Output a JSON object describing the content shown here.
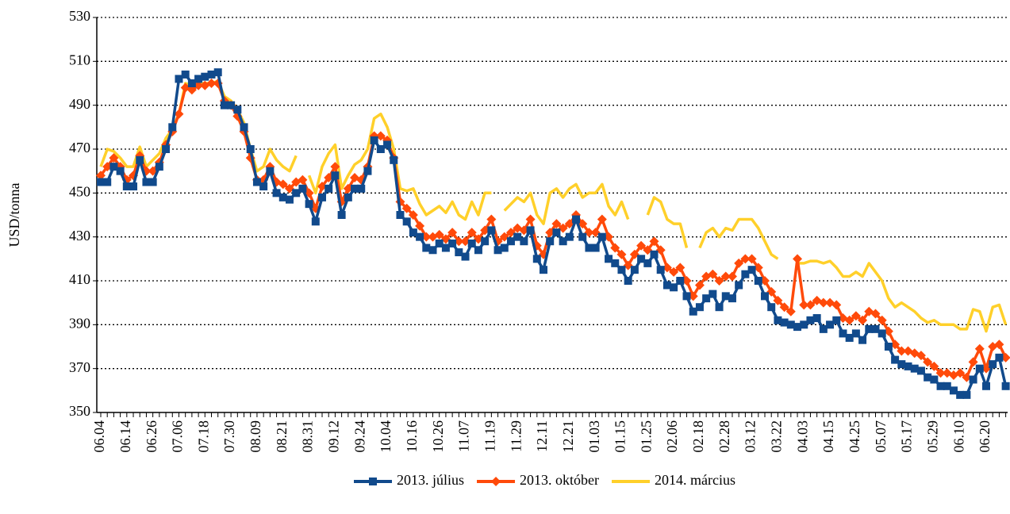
{
  "chart_data": {
    "type": "line",
    "y_label": "USD/tonna",
    "categories": [
      "06.04",
      null,
      null,
      null,
      "06.14",
      null,
      null,
      null,
      "06.26",
      null,
      null,
      null,
      "07.06",
      null,
      null,
      null,
      "07.18",
      null,
      null,
      null,
      "07.30",
      null,
      null,
      null,
      "08.09",
      null,
      null,
      null,
      "08.21",
      null,
      null,
      null,
      "08.31",
      null,
      null,
      null,
      "09.12",
      null,
      null,
      null,
      "09.24",
      null,
      null,
      null,
      "10.04",
      null,
      null,
      null,
      "10.16",
      null,
      null,
      null,
      "10.26",
      null,
      null,
      null,
      "11.07",
      null,
      null,
      null,
      "11.19",
      null,
      null,
      null,
      "11.29",
      null,
      null,
      null,
      "12.11",
      null,
      null,
      null,
      "12.21",
      null,
      null,
      null,
      "01.03",
      null,
      null,
      null,
      "01.15",
      null,
      null,
      null,
      "01.25",
      null,
      null,
      null,
      "02.06",
      null,
      null,
      null,
      "02.18",
      null,
      null,
      null,
      "02.28",
      null,
      null,
      null,
      "03.12",
      null,
      null,
      null,
      "03.22",
      null,
      null,
      null,
      "04.03",
      null,
      null,
      null,
      "04.15",
      null,
      null,
      null,
      "04.25",
      null,
      null,
      null,
      "05.07",
      null,
      null,
      null,
      "05.17",
      null,
      null,
      null,
      "05.29",
      null,
      null,
      null,
      "06.10",
      null,
      null,
      null,
      "06.20",
      null,
      null,
      null
    ],
    "series": [
      {
        "name": "2013. július",
        "color": "#114a8c",
        "marker": "square",
        "values": [
          455,
          455,
          462,
          460,
          453,
          453,
          465,
          455,
          455,
          462,
          470,
          480,
          502,
          504,
          500,
          502,
          503,
          504,
          505,
          490,
          490,
          488,
          480,
          470,
          455,
          453,
          460,
          450,
          448,
          447,
          450,
          452,
          445,
          437,
          448,
          452,
          458,
          440,
          448,
          452,
          452,
          460,
          474,
          470,
          472,
          465,
          440,
          437,
          432,
          430,
          425,
          424,
          427,
          425,
          427,
          423,
          421,
          427,
          424,
          428,
          433,
          424,
          425,
          428,
          430,
          428,
          433,
          420,
          415,
          428,
          432,
          428,
          430,
          438,
          430,
          425,
          425,
          430,
          420,
          418,
          415,
          410,
          415,
          420,
          418,
          422,
          415,
          408,
          407,
          410,
          403,
          396,
          398,
          402,
          404,
          398,
          403,
          402,
          408,
          413,
          415,
          410,
          403,
          398,
          392,
          391,
          390,
          389,
          390,
          392,
          393,
          388,
          390,
          392,
          386,
          384,
          386,
          383,
          388,
          388,
          386,
          380,
          374,
          372,
          371,
          370,
          369,
          366,
          365,
          362,
          362,
          360,
          358,
          358,
          365,
          370,
          362,
          372,
          375,
          362
        ]
      },
      {
        "name": "2013. október",
        "color": "#ff4a0a",
        "marker": "diamond",
        "values": [
          458,
          462,
          466,
          462,
          456,
          458,
          467,
          460,
          460,
          464,
          472,
          478,
          486,
          498,
          497,
          499,
          499,
          500,
          500,
          492,
          490,
          485,
          478,
          466,
          456,
          456,
          462,
          455,
          454,
          452,
          455,
          456,
          450,
          443,
          453,
          457,
          462,
          446,
          452,
          457,
          456,
          462,
          476,
          476,
          474,
          466,
          446,
          443,
          440,
          435,
          430,
          430,
          431,
          429,
          432,
          428,
          428,
          432,
          429,
          433,
          438,
          428,
          430,
          432,
          434,
          433,
          438,
          426,
          422,
          432,
          436,
          434,
          436,
          440,
          436,
          432,
          432,
          438,
          430,
          425,
          422,
          417,
          422,
          426,
          424,
          428,
          424,
          416,
          414,
          416,
          410,
          403,
          408,
          412,
          413,
          410,
          412,
          412,
          418,
          420,
          420,
          416,
          410,
          405,
          401,
          398,
          396,
          420,
          399,
          399,
          401,
          400,
          400,
          399,
          393,
          392,
          394,
          392,
          396,
          395,
          392,
          387,
          381,
          378,
          378,
          377,
          376,
          373,
          371,
          368,
          368,
          367,
          368,
          366,
          373,
          379,
          370,
          380,
          381,
          375
        ]
      },
      {
        "name": "2014. március",
        "color": "#ffd02a",
        "marker": "none",
        "values": [
          462,
          470,
          469,
          466,
          462,
          462,
          471,
          462,
          465,
          468,
          475,
          479,
          486,
          500,
          499,
          500,
          500,
          500,
          501,
          494,
          492,
          488,
          482,
          470,
          460,
          462,
          470,
          465,
          462,
          460,
          467,
          null,
          458,
          450,
          462,
          468,
          472,
          452,
          458,
          463,
          465,
          470,
          484,
          486,
          480,
          470,
          452,
          451,
          452,
          445,
          440,
          442,
          444,
          441,
          446,
          440,
          438,
          446,
          440,
          450,
          450,
          null,
          442,
          445,
          448,
          446,
          450,
          440,
          436,
          450,
          452,
          448,
          452,
          454,
          448,
          450,
          450,
          454,
          444,
          440,
          446,
          438,
          null,
          null,
          440,
          448,
          446,
          438,
          436,
          436,
          425,
          null,
          425,
          432,
          434,
          430,
          434,
          433,
          438,
          438,
          438,
          434,
          428,
          422,
          420,
          null,
          null,
          418,
          418,
          419,
          419,
          418,
          419,
          416,
          412,
          412,
          414,
          412,
          418,
          414,
          410,
          402,
          398,
          400,
          398,
          396,
          393,
          391,
          392,
          390,
          390,
          390,
          388,
          388,
          397,
          396,
          387,
          398,
          399,
          390
        ]
      }
    ],
    "ylim": [
      350,
      530
    ],
    "yticks": [
      350,
      370,
      390,
      410,
      430,
      450,
      470,
      490,
      510,
      530
    ],
    "grid": true,
    "legend": "bottom"
  }
}
